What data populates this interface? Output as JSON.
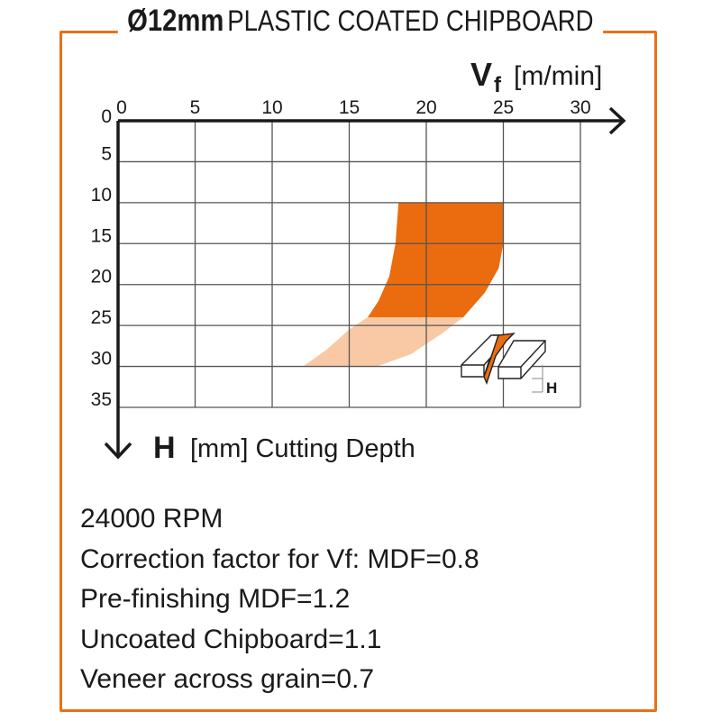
{
  "title": {
    "bold": "Ø12mm",
    "rest": "PLASTIC COATED CHIPBOARD"
  },
  "colors": {
    "frame": "#e8701a",
    "dark_region": "#ea6c0e",
    "light_region": "#f8c9a4",
    "grid": "#555555",
    "axis": "#1a1a1a"
  },
  "chart_data": {
    "type": "area",
    "xlabel": {
      "symbol": "V",
      "subscript": "f",
      "unit": "[m/min]"
    },
    "ylabel": {
      "symbol": "H",
      "unit": "[mm] Cutting Depth"
    },
    "x_ticks": [
      "0",
      "5",
      "10",
      "15",
      "20",
      "25",
      "30"
    ],
    "y_ticks": [
      "0",
      "5",
      "10",
      "15",
      "20",
      "25",
      "30",
      "35"
    ],
    "xlim": [
      0,
      30
    ],
    "ylim": [
      0,
      35
    ],
    "y_inverted": true,
    "grid": true,
    "regions": [
      {
        "shade": "dark",
        "left": [
          [
            18.2,
            10
          ],
          [
            18.0,
            15
          ],
          [
            17.6,
            19
          ],
          [
            16.9,
            22
          ],
          [
            16.2,
            24
          ]
        ],
        "right": [
          [
            25,
            10
          ],
          [
            25,
            15
          ],
          [
            24.7,
            18
          ],
          [
            23.8,
            21
          ],
          [
            22.4,
            24
          ]
        ]
      },
      {
        "shade": "light",
        "left": [
          [
            16.2,
            24
          ],
          [
            15.0,
            25.5
          ],
          [
            13.5,
            28
          ],
          [
            12.0,
            30
          ]
        ],
        "right": [
          [
            22.4,
            24
          ],
          [
            21.0,
            26
          ],
          [
            19.0,
            28.5
          ],
          [
            16.8,
            30
          ]
        ]
      }
    ],
    "inset_label": "H"
  },
  "notes": [
    "24000 RPM",
    "Correction factor for Vf: MDF=0.8",
    "Pre-finishing MDF=1.2",
    "Uncoated Chipboard=1.1",
    "Veneer across grain=0.7"
  ]
}
